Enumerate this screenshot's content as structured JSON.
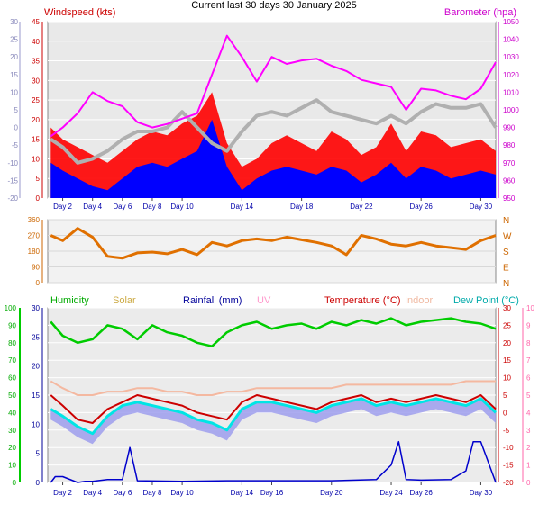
{
  "title": "Current last 30 days 30 January 2025",
  "colors": {
    "wind_gust": "#ff0000",
    "wind_avg": "#0000ff",
    "barometer": "#ff00ff",
    "temp_grey": "#b0b0b0",
    "direction": "#e07000",
    "humidity": "#00cc00",
    "solar": "#ffa500",
    "rainfall": "#0000cc",
    "uv": "#ff69b4",
    "temperature": "#cc0000",
    "indoor": "#f4b8a0",
    "dewpoint": "#00e5e5",
    "dewpoint_band": "#9999ee"
  },
  "chart_data": [
    {
      "type": "line",
      "name": "wind-barometer",
      "legend": {
        "left": "Windspeed (kts)",
        "right": "Barometer (hpa)"
      },
      "x_ticks": [
        "Day 2",
        "Day 4",
        "Day 6",
        "Day 8",
        "Day 10",
        "Day 14",
        "Day 18",
        "Day 22",
        "Day 26",
        "Day 30"
      ],
      "y_left_ticks": [
        "0",
        "5",
        "10",
        "15",
        "20",
        "25",
        "30",
        "35",
        "40",
        "45"
      ],
      "y_left_range": [
        0,
        45
      ],
      "y_outer_ticks": [
        "-20",
        "-15",
        "-10",
        "-5",
        "0",
        "5",
        "10",
        "15",
        "20",
        "25",
        "30"
      ],
      "y_right_ticks": [
        "950",
        "960",
        "970",
        "980",
        "990",
        "1000",
        "1010",
        "1020",
        "1030",
        "1040",
        "1050"
      ],
      "y_right_range": [
        950,
        1050
      ],
      "x_range": [
        1,
        31
      ],
      "barometer": {
        "x": [
          1.2,
          2,
          3,
          4,
          5,
          6,
          7,
          8,
          9,
          10,
          11,
          12,
          13,
          14,
          15,
          16,
          17,
          18,
          19,
          20,
          21,
          22,
          23,
          24,
          25,
          26,
          27,
          28,
          29,
          30,
          31
        ],
        "y": [
          985,
          990,
          998,
          1010,
          1005,
          1002,
          993,
          990,
          992,
          995,
          998,
          1020,
          1042,
          1030,
          1016,
          1030,
          1026,
          1028,
          1029,
          1025,
          1022,
          1017,
          1015,
          1013,
          1000,
          1012,
          1011,
          1008,
          1006,
          1012,
          1027
        ]
      },
      "gust": {
        "x": [
          1.2,
          2,
          3,
          4,
          5,
          6,
          7,
          8,
          9,
          10,
          11,
          12,
          13,
          14,
          15,
          16,
          17,
          18,
          19,
          20,
          21,
          22,
          23,
          24,
          25,
          26,
          27,
          28,
          29,
          30,
          31
        ],
        "y": [
          18,
          15,
          13,
          11,
          9,
          12,
          15,
          17,
          16,
          19,
          21,
          27,
          14,
          8,
          10,
          14,
          16,
          14,
          12,
          17,
          15,
          11,
          13,
          19,
          12,
          17,
          16,
          13,
          14,
          15,
          12
        ]
      },
      "avg": {
        "x": [
          1.2,
          2,
          3,
          4,
          5,
          6,
          7,
          8,
          9,
          10,
          11,
          12,
          13,
          14,
          15,
          16,
          17,
          18,
          19,
          20,
          21,
          22,
          23,
          24,
          25,
          26,
          27,
          28,
          29,
          30,
          31
        ],
        "y": [
          9,
          7,
          5,
          3,
          2,
          5,
          8,
          9,
          8,
          10,
          12,
          20,
          8,
          2,
          5,
          7,
          8,
          7,
          6,
          8,
          7,
          4,
          6,
          9,
          5,
          8,
          7,
          5,
          6,
          7,
          6
        ]
      },
      "grey_temp": {
        "x": [
          1.2,
          2,
          3,
          4,
          5,
          6,
          7,
          8,
          9,
          10,
          11,
          12,
          13,
          14,
          15,
          16,
          17,
          18,
          19,
          20,
          21,
          22,
          23,
          24,
          25,
          26,
          27,
          28,
          29,
          30,
          31
        ],
        "y": [
          15,
          13,
          9,
          10,
          12,
          15,
          17,
          17,
          18,
          22,
          18,
          14,
          12,
          17,
          21,
          22,
          21,
          23,
          25,
          22,
          21,
          20,
          19,
          21,
          19,
          22,
          24,
          23,
          23,
          24,
          18
        ]
      }
    },
    {
      "type": "line",
      "name": "wind-direction",
      "y_left_ticks": [
        "0",
        "90",
        "180",
        "270",
        "360"
      ],
      "y_range": [
        0,
        360
      ],
      "y_right_ticks": [
        "N",
        "W",
        "S",
        "E",
        "N"
      ],
      "x": [
        1.2,
        2,
        3,
        4,
        5,
        6,
        7,
        8,
        9,
        10,
        11,
        12,
        13,
        14,
        15,
        16,
        17,
        18,
        19,
        20,
        21,
        22,
        23,
        24,
        25,
        26,
        27,
        28,
        29,
        30,
        31
      ],
      "y": [
        270,
        240,
        310,
        260,
        150,
        140,
        170,
        175,
        165,
        190,
        160,
        230,
        210,
        240,
        250,
        240,
        260,
        245,
        230,
        210,
        160,
        270,
        250,
        220,
        210,
        230,
        210,
        200,
        190,
        240,
        270
      ]
    },
    {
      "type": "line",
      "name": "weather-lower",
      "legend": [
        "Humidity",
        "Solar",
        "Rainfall (mm)",
        "UV",
        "Temperature (°C)",
        "Indoor",
        "Dew Point (°C)"
      ],
      "x_ticks": [
        "Day 2",
        "Day 4",
        "Day 6",
        "Day 8",
        "Day 10",
        "Day 14",
        "Day 16",
        "Day 20",
        "Day 24",
        "Day 26",
        "Day 30"
      ],
      "humidity_ticks": [
        "0",
        "10",
        "20",
        "30",
        "40",
        "50",
        "60",
        "70",
        "80",
        "90",
        "100"
      ],
      "rain_ticks": [
        "0",
        "5",
        "10",
        "15",
        "20",
        "25",
        "30"
      ],
      "temp_ticks": [
        "30",
        "25",
        "20",
        "15",
        "10",
        "5",
        "0",
        "-5",
        "-10",
        "-15",
        "-20"
      ],
      "uv_ticks": [
        "10",
        "9",
        "8",
        "7",
        "6",
        "5",
        "4",
        "3",
        "2",
        "1",
        "0"
      ],
      "humidity": {
        "x": [
          1.2,
          2,
          3,
          4,
          5,
          6,
          7,
          8,
          9,
          10,
          11,
          12,
          13,
          14,
          15,
          16,
          17,
          18,
          19,
          20,
          21,
          22,
          23,
          24,
          25,
          26,
          27,
          28,
          29,
          30,
          31
        ],
        "y": [
          92,
          84,
          80,
          82,
          90,
          88,
          82,
          90,
          86,
          84,
          80,
          78,
          86,
          90,
          92,
          88,
          90,
          91,
          88,
          92,
          90,
          93,
          91,
          94,
          90,
          92,
          93,
          94,
          92,
          91,
          88
        ]
      },
      "temperature": {
        "x": [
          1.2,
          2,
          3,
          4,
          5,
          6,
          7,
          8,
          9,
          10,
          11,
          12,
          13,
          14,
          15,
          16,
          17,
          18,
          19,
          20,
          21,
          22,
          23,
          24,
          25,
          26,
          27,
          28,
          29,
          30,
          31
        ],
        "y": [
          5,
          2,
          -2,
          -3,
          1,
          3,
          5,
          4,
          3,
          2,
          0,
          -1,
          -2,
          3,
          5,
          4,
          3,
          2,
          1,
          3,
          4,
          5,
          3,
          4,
          3,
          4,
          5,
          4,
          3,
          5,
          1
        ]
      },
      "dewpoint": {
        "x": [
          1.2,
          2,
          3,
          4,
          5,
          6,
          7,
          8,
          9,
          10,
          11,
          12,
          13,
          14,
          15,
          16,
          17,
          18,
          19,
          20,
          21,
          22,
          23,
          24,
          25,
          26,
          27,
          28,
          29,
          30,
          31
        ],
        "y": [
          1,
          -1,
          -4,
          -6,
          -1,
          2,
          3,
          2,
          1,
          0,
          -2,
          -3,
          -5,
          1,
          3,
          3,
          2,
          1,
          0,
          2,
          3,
          4,
          2,
          3,
          2,
          3,
          4,
          3,
          2,
          4,
          0
        ]
      },
      "indoor": {
        "x": [
          1.2,
          2,
          3,
          4,
          5,
          6,
          7,
          8,
          9,
          10,
          11,
          12,
          13,
          14,
          15,
          16,
          17,
          18,
          19,
          20,
          21,
          22,
          23,
          24,
          25,
          26,
          27,
          28,
          29,
          30,
          31
        ],
        "y": [
          9,
          7,
          5,
          5,
          6,
          6,
          7,
          7,
          6,
          6,
          5,
          5,
          6,
          6,
          7,
          7,
          7,
          7,
          7,
          7,
          8,
          8,
          8,
          8,
          8,
          8,
          8,
          8,
          9,
          9,
          9
        ]
      },
      "rainfall": {
        "x": [
          1.2,
          1.5,
          2,
          3,
          3.5,
          4,
          5,
          6,
          6.5,
          7,
          10,
          13,
          15,
          20,
          23,
          24,
          24.5,
          25,
          26,
          28,
          29,
          29.5,
          30,
          31
        ],
        "y": [
          0,
          1,
          1,
          0,
          0.2,
          0.2,
          0.5,
          0.5,
          6,
          0.3,
          0.2,
          0.3,
          0.3,
          0.3,
          0.5,
          3,
          7,
          0.5,
          0.4,
          0.5,
          2,
          7,
          7,
          0
        ]
      }
    }
  ]
}
